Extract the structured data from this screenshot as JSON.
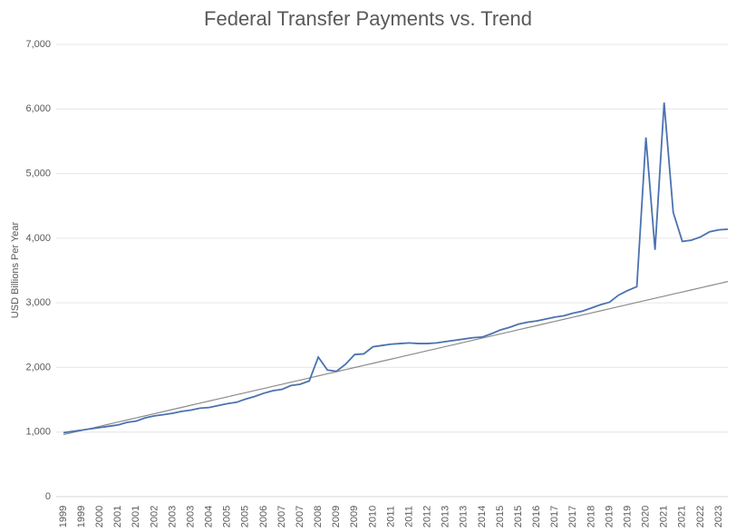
{
  "chart_data": {
    "type": "line",
    "title": "Federal Transfer Payments vs. Trend",
    "y_label": "USD Billions Per Year",
    "categories": [
      "1999",
      null,
      "1999",
      null,
      "2000",
      null,
      "2001",
      null,
      "2001",
      null,
      "2002",
      null,
      "2003",
      null,
      "2003",
      null,
      "2004",
      null,
      "2005",
      null,
      "2005",
      null,
      "2006",
      null,
      "2007",
      null,
      "2007",
      null,
      "2008",
      null,
      "2009",
      null,
      "2009",
      null,
      "2010",
      null,
      "2011",
      null,
      "2011",
      null,
      "2012",
      null,
      "2013",
      null,
      "2013",
      null,
      "2014",
      null,
      "2015",
      null,
      "2015",
      null,
      "2016",
      null,
      "2017",
      null,
      "2017",
      null,
      "2018",
      null,
      "2019",
      null,
      "2019",
      null,
      "2020",
      null,
      "2021",
      null,
      "2021",
      null,
      "2022",
      null,
      "2023",
      null
    ],
    "series": [
      {
        "color": "#4a72b0",
        "values": [
          990,
          1010,
          1030,
          1050,
          1070,
          1090,
          1110,
          1150,
          1170,
          1220,
          1250,
          1270,
          1290,
          1320,
          1340,
          1370,
          1380,
          1410,
          1440,
          1460,
          1510,
          1550,
          1600,
          1640,
          1660,
          1720,
          1740,
          1790,
          2160,
          1960,
          1940,
          2050,
          2200,
          2210,
          2320,
          2340,
          2360,
          2370,
          2380,
          2370,
          2370,
          2380,
          2400,
          2420,
          2440,
          2460,
          2470,
          2520,
          2580,
          2620,
          2670,
          2700,
          2720,
          2750,
          2780,
          2800,
          2840,
          2870,
          2920,
          2970,
          3010,
          3120,
          3190,
          3250,
          5560,
          3820,
          6100,
          4400,
          3950,
          3970,
          4020,
          4100,
          4130,
          4140
        ]
      },
      {
        "color": "#8c8c8c",
        "values": [
          960,
          992,
          1025,
          1057,
          1090,
          1122,
          1155,
          1187,
          1220,
          1252,
          1285,
          1317,
          1350,
          1382,
          1415,
          1447,
          1480,
          1512,
          1544,
          1577,
          1609,
          1642,
          1674,
          1707,
          1739,
          1772,
          1804,
          1837,
          1869,
          1902,
          1934,
          1967,
          1999,
          2032,
          2064,
          2097,
          2129,
          2161,
          2194,
          2226,
          2259,
          2291,
          2324,
          2356,
          2389,
          2421,
          2454,
          2486,
          2519,
          2551,
          2584,
          2616,
          2648,
          2681,
          2713,
          2746,
          2778,
          2811,
          2843,
          2876,
          2908,
          2941,
          2973,
          3006,
          3038,
          3071,
          3103,
          3136,
          3168,
          3200,
          3233,
          3265,
          3298,
          3330
        ]
      }
    ],
    "ylim": [
      0,
      7000
    ],
    "yticks": [
      0,
      {
        "value": 1000,
        "label": "1,000"
      },
      {
        "value": 2000,
        "label": "2,000"
      },
      {
        "value": 3000,
        "label": "3,000"
      },
      {
        "value": 4000,
        "label": "4,000"
      },
      {
        "value": 5000,
        "label": "5,000"
      },
      {
        "value": 6000,
        "label": "6,000"
      },
      {
        "value": 7000,
        "label": "7,000"
      }
    ],
    "grid": true
  }
}
